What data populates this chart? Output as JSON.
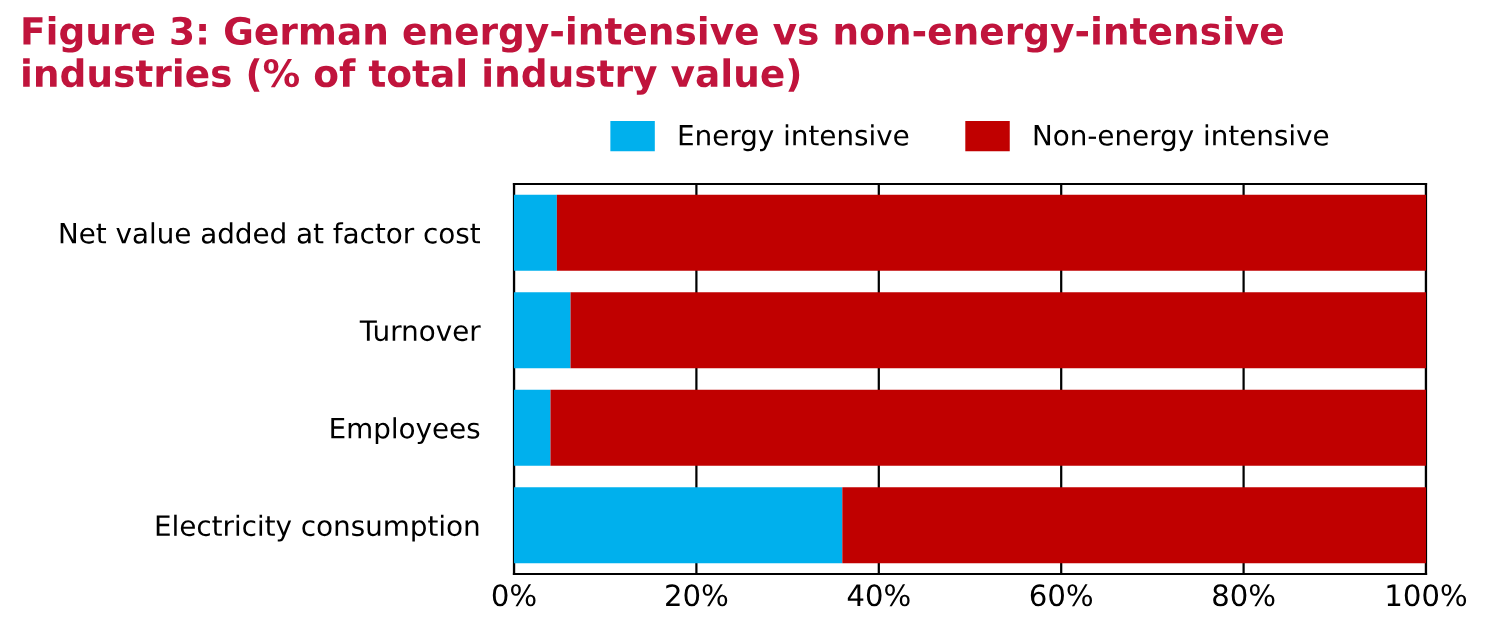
{
  "chart_data": {
    "type": "bar",
    "orientation": "horizontal",
    "stacked": true,
    "title": "Figure 3: German energy-intensive vs non-energy-intensive industries (% of total industry value)",
    "categories": [
      "Net value added at factor cost",
      "Turnover",
      "Employees",
      "Electricity consumption"
    ],
    "series": [
      {
        "name": "Energy intensive",
        "color": "#00b0ed",
        "values": [
          4.7,
          6.2,
          4.0,
          36
        ]
      },
      {
        "name": "Non-energy intensive",
        "color": "#c00000",
        "values": [
          95.3,
          93.8,
          96.0,
          64
        ]
      }
    ],
    "xlim": [
      0,
      100
    ],
    "xticks": [
      {
        "value": 0,
        "label": "0%"
      },
      {
        "value": 20,
        "label": "20%"
      },
      {
        "value": 40,
        "label": "40%"
      },
      {
        "value": 60,
        "label": "60%"
      },
      {
        "value": 80,
        "label": "80%"
      },
      {
        "value": 100,
        "label": "100%"
      }
    ],
    "grid": "x",
    "legend": "top"
  }
}
